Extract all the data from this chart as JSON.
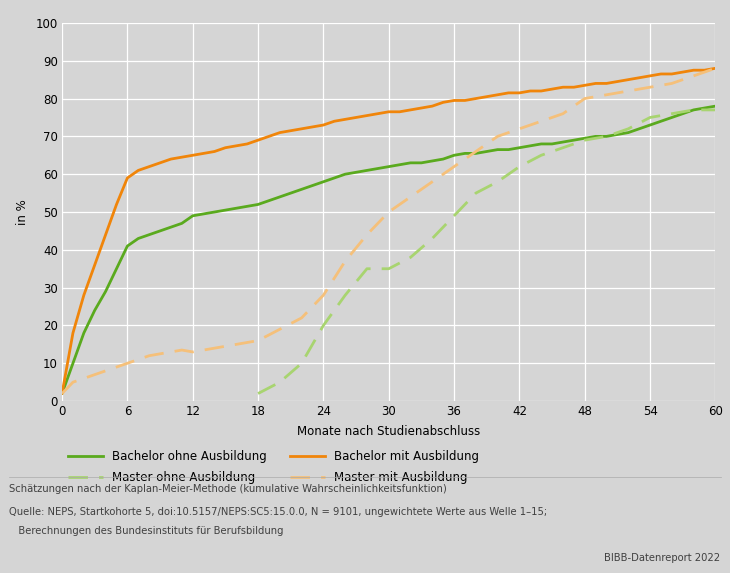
{
  "title": "",
  "xlabel": "Monate nach Studienabschluss",
  "ylabel": "in %",
  "xlim": [
    0,
    60
  ],
  "ylim": [
    0,
    100
  ],
  "xticks": [
    0,
    6,
    12,
    18,
    24,
    30,
    36,
    42,
    48,
    54,
    60
  ],
  "yticks": [
    0,
    10,
    20,
    30,
    40,
    50,
    60,
    70,
    80,
    90,
    100
  ],
  "bg_color": "#d5d5d5",
  "fig_bg_color": "#d5d5d5",
  "grid_color": "#ffffff",
  "colors": {
    "bachelor_ohne": "#5aaa1e",
    "bachelor_mit": "#f0850a",
    "master_ohne": "#a8d470",
    "master_mit": "#f5c07a"
  },
  "bachelor_ohne_x": [
    0,
    1,
    2,
    3,
    4,
    5,
    6,
    7,
    8,
    9,
    10,
    11,
    12,
    13,
    14,
    15,
    16,
    17,
    18,
    19,
    20,
    21,
    22,
    23,
    24,
    25,
    26,
    27,
    28,
    29,
    30,
    31,
    32,
    33,
    34,
    35,
    36,
    37,
    38,
    39,
    40,
    41,
    42,
    43,
    44,
    45,
    46,
    47,
    48,
    49,
    50,
    51,
    52,
    53,
    54,
    55,
    56,
    57,
    58,
    59,
    60
  ],
  "bachelor_ohne_y": [
    2,
    10,
    18,
    24,
    29,
    35,
    41,
    43,
    44,
    45,
    46,
    47,
    49,
    49.5,
    50,
    50.5,
    51,
    51.5,
    52,
    53,
    54,
    55,
    56,
    57,
    58,
    59,
    60,
    60.5,
    61,
    61.5,
    62,
    62.5,
    63,
    63,
    63.5,
    64,
    65,
    65.5,
    65.5,
    66,
    66.5,
    66.5,
    67,
    67.5,
    68,
    68,
    68.5,
    69,
    69.5,
    70,
    70,
    70.5,
    71,
    72,
    73,
    74,
    75,
    76,
    77,
    77.5,
    78
  ],
  "bachelor_mit_x": [
    0,
    1,
    2,
    3,
    4,
    5,
    6,
    7,
    8,
    9,
    10,
    11,
    12,
    13,
    14,
    15,
    16,
    17,
    18,
    19,
    20,
    21,
    22,
    23,
    24,
    25,
    26,
    27,
    28,
    29,
    30,
    31,
    32,
    33,
    34,
    35,
    36,
    37,
    38,
    39,
    40,
    41,
    42,
    43,
    44,
    45,
    46,
    47,
    48,
    49,
    50,
    51,
    52,
    53,
    54,
    55,
    56,
    57,
    58,
    59,
    60
  ],
  "bachelor_mit_y": [
    2,
    18,
    28,
    36,
    44,
    52,
    59,
    61,
    62,
    63,
    64,
    64.5,
    65,
    65.5,
    66,
    67,
    67.5,
    68,
    69,
    70,
    71,
    71.5,
    72,
    72.5,
    73,
    74,
    74.5,
    75,
    75.5,
    76,
    76.5,
    76.5,
    77,
    77.5,
    78,
    79,
    79.5,
    79.5,
    80,
    80.5,
    81,
    81.5,
    81.5,
    82,
    82,
    82.5,
    83,
    83,
    83.5,
    84,
    84,
    84.5,
    85,
    85.5,
    86,
    86.5,
    86.5,
    87,
    87.5,
    87.5,
    88
  ],
  "master_ohne_x": [
    18,
    20,
    22,
    24,
    26,
    28,
    30,
    32,
    34,
    36,
    38,
    40,
    42,
    44,
    46,
    48,
    50,
    52,
    54,
    56,
    58,
    60
  ],
  "master_ohne_y": [
    2,
    5,
    10,
    20,
    28,
    35,
    35,
    38,
    43,
    49,
    55,
    58,
    62,
    65,
    67,
    69,
    70,
    72,
    75,
    76,
    77,
    77
  ],
  "master_mit_x": [
    0,
    1,
    2,
    3,
    4,
    5,
    6,
    7,
    8,
    9,
    10,
    11,
    12,
    13,
    14,
    15,
    16,
    17,
    18,
    20,
    22,
    24,
    26,
    28,
    30,
    32,
    34,
    36,
    38,
    40,
    42,
    44,
    46,
    48,
    50,
    52,
    54,
    56,
    58,
    60
  ],
  "master_mit_y": [
    2,
    5,
    6,
    7,
    8,
    9,
    10,
    11,
    12,
    12.5,
    13,
    13.5,
    13,
    13.5,
    14,
    14.5,
    15,
    15.5,
    16,
    19,
    22,
    28,
    37,
    44,
    50,
    54,
    58,
    62,
    66,
    70,
    72,
    74,
    76,
    80,
    81,
    82,
    83,
    84,
    86,
    88
  ],
  "footnote1": "Schätzungen nach der Kaplan-Meier-Methode (kumulative Wahrscheinlichkeitsfunktion)",
  "footnote2": "Quelle: NEPS, Startkohorte 5, doi:10.5157/NEPS:SC5:15.0.0, N = 9101, ungewichtete Werte aus Welle 1–15;",
  "footnote3": "   Berechnungen des Bundesinstituts für Berufsbildung",
  "footnote4": "BIBB-Datenreport 2022",
  "leg_row1_col1": "Bachelor ohne Ausbildung",
  "leg_row1_col2": "Master ohne Ausbildung",
  "leg_row2_col1": "Bachelor mit Ausbildung",
  "leg_row2_col2": "Master mit Ausbildung"
}
